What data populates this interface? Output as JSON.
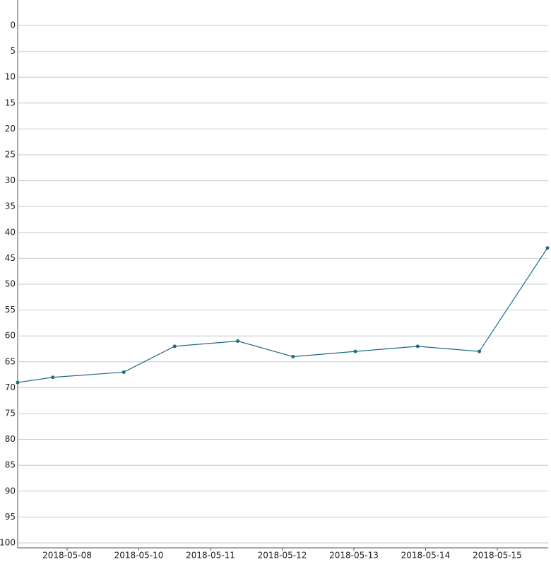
{
  "chart_data": {
    "type": "line",
    "inverted_y": true,
    "x": [
      -0.69,
      -0.2,
      0.79,
      1.5,
      2.38,
      3.15,
      4.02,
      4.89,
      5.75,
      6.7
    ],
    "series": [
      {
        "color": "#1c6b84",
        "values": [
          69,
          68,
          67,
          62,
          61,
          64,
          63,
          62,
          63,
          43
        ]
      }
    ],
    "xlim": [
      -0.69,
      6.71
    ],
    "xticks": [
      {
        "value": 0,
        "label": "2018-05-08"
      },
      {
        "value": 1,
        "label": "2018-05-10"
      },
      {
        "value": 2,
        "label": "2018-05-11"
      },
      {
        "value": 3,
        "label": "2018-05-12"
      },
      {
        "value": 4,
        "label": "2018-05-13"
      },
      {
        "value": 5,
        "label": "2018-05-14"
      },
      {
        "value": 6,
        "label": "2018-05-15"
      }
    ],
    "ylim": [
      0,
      100
    ],
    "yticks": [
      0,
      5,
      10,
      15,
      20,
      25,
      30,
      35,
      40,
      45,
      50,
      55,
      60,
      65,
      70,
      75,
      80,
      85,
      90,
      95,
      100
    ],
    "grid": true
  }
}
